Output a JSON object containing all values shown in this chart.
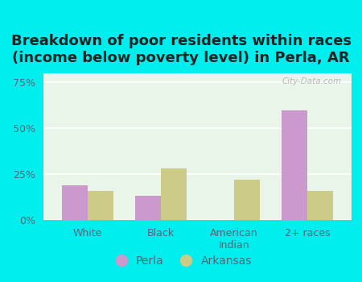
{
  "title": "Breakdown of poor residents within races\n(income below poverty level) in Perla, AR",
  "categories": [
    "White",
    "Black",
    "American\nIndian",
    "2+ races"
  ],
  "perla_values": [
    19,
    13,
    0,
    60
  ],
  "arkansas_values": [
    16,
    28,
    22,
    16
  ],
  "perla_color": "#cc99cc",
  "arkansas_color": "#cccc88",
  "bg_outer": "#00eeee",
  "bg_plot": "#eaf5ea",
  "ylim": [
    0,
    80
  ],
  "yticks": [
    0,
    25,
    50,
    75
  ],
  "ytick_labels": [
    "0%",
    "25%",
    "50%",
    "75%"
  ],
  "bar_width": 0.35,
  "title_fontsize": 13,
  "tick_color": "#556677",
  "legend_labels": [
    "Perla",
    "Arkansas"
  ],
  "watermark": "City-Data.com"
}
